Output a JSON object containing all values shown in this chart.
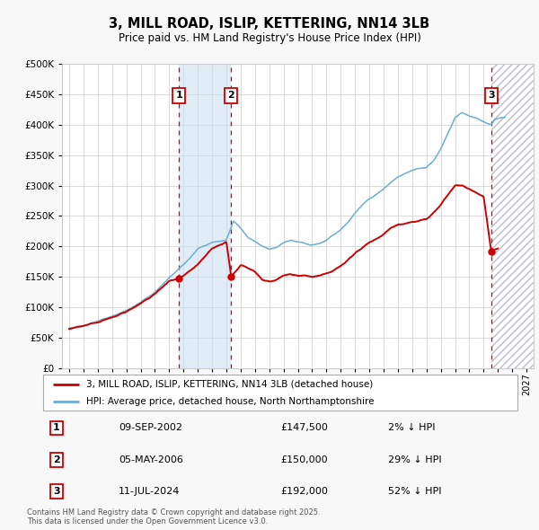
{
  "title": "3, MILL ROAD, ISLIP, KETTERING, NN14 3LB",
  "subtitle": "Price paid vs. HM Land Registry's House Price Index (HPI)",
  "legend_line1": "3, MILL ROAD, ISLIP, KETTERING, NN14 3LB (detached house)",
  "legend_line2": "HPI: Average price, detached house, North Northamptonshire",
  "footer": "Contains HM Land Registry data © Crown copyright and database right 2025.\nThis data is licensed under the Open Government Licence v3.0.",
  "transactions": [
    {
      "label": "1",
      "date": "09-SEP-2002",
      "price": 147500,
      "pct": "2% ↓ HPI",
      "x_year": 2002.69
    },
    {
      "label": "2",
      "date": "05-MAY-2006",
      "price": 150000,
      "pct": "29% ↓ HPI",
      "x_year": 2006.34
    },
    {
      "label": "3",
      "date": "11-JUL-2024",
      "price": 192000,
      "pct": "52% ↓ HPI",
      "x_year": 2024.53
    }
  ],
  "hpi_color": "#6baed6",
  "price_color": "#cc0000",
  "background_color": "#f8f8f8",
  "plot_bg_color": "#ffffff",
  "grid_color": "#cccccc",
  "shaded_region": [
    2002.69,
    2006.34
  ],
  "hatch_region_start": 2024.53,
  "ylim": [
    0,
    500000
  ],
  "xlim": [
    1994.5,
    2027.5
  ],
  "yticks": [
    0,
    50000,
    100000,
    150000,
    200000,
    250000,
    300000,
    350000,
    400000,
    450000,
    500000
  ],
  "xticks": [
    1995,
    1996,
    1997,
    1998,
    1999,
    2000,
    2001,
    2002,
    2003,
    2004,
    2005,
    2006,
    2007,
    2008,
    2009,
    2010,
    2011,
    2012,
    2013,
    2014,
    2015,
    2016,
    2017,
    2018,
    2019,
    2020,
    2021,
    2022,
    2023,
    2024,
    2025,
    2026,
    2027
  ],
  "hpi_anchors": [
    [
      1995.0,
      65000
    ],
    [
      1996.0,
      70000
    ],
    [
      1997.0,
      78000
    ],
    [
      1998.0,
      85000
    ],
    [
      1999.0,
      95000
    ],
    [
      2000.0,
      108000
    ],
    [
      2001.0,
      125000
    ],
    [
      2002.0,
      148000
    ],
    [
      2003.0,
      170000
    ],
    [
      2004.0,
      195000
    ],
    [
      2005.0,
      207000
    ],
    [
      2006.0,
      210000
    ],
    [
      2006.5,
      243000
    ],
    [
      2007.0,
      230000
    ],
    [
      2007.5,
      215000
    ],
    [
      2008.0,
      208000
    ],
    [
      2008.5,
      200000
    ],
    [
      2009.0,
      195000
    ],
    [
      2009.5,
      198000
    ],
    [
      2010.0,
      207000
    ],
    [
      2010.5,
      210000
    ],
    [
      2011.0,
      207000
    ],
    [
      2011.5,
      205000
    ],
    [
      2012.0,
      202000
    ],
    [
      2012.5,
      205000
    ],
    [
      2013.0,
      210000
    ],
    [
      2013.5,
      218000
    ],
    [
      2014.0,
      228000
    ],
    [
      2014.5,
      240000
    ],
    [
      2015.0,
      255000
    ],
    [
      2015.5,
      268000
    ],
    [
      2016.0,
      278000
    ],
    [
      2016.5,
      285000
    ],
    [
      2017.0,
      295000
    ],
    [
      2017.5,
      305000
    ],
    [
      2018.0,
      315000
    ],
    [
      2018.5,
      320000
    ],
    [
      2019.0,
      325000
    ],
    [
      2019.5,
      328000
    ],
    [
      2020.0,
      330000
    ],
    [
      2020.5,
      340000
    ],
    [
      2021.0,
      360000
    ],
    [
      2021.5,
      385000
    ],
    [
      2022.0,
      410000
    ],
    [
      2022.5,
      420000
    ],
    [
      2023.0,
      415000
    ],
    [
      2023.5,
      410000
    ],
    [
      2024.0,
      405000
    ],
    [
      2024.53,
      400000
    ],
    [
      2024.8,
      408000
    ],
    [
      2025.0,
      410000
    ],
    [
      2025.5,
      412000
    ]
  ],
  "price_anchors": [
    [
      1995.0,
      65000
    ],
    [
      1996.0,
      70000
    ],
    [
      1997.0,
      76000
    ],
    [
      1998.0,
      83000
    ],
    [
      1999.0,
      93000
    ],
    [
      2000.0,
      106000
    ],
    [
      2001.0,
      122000
    ],
    [
      2002.0,
      143000
    ],
    [
      2002.69,
      147500
    ],
    [
      2003.0,
      151000
    ],
    [
      2004.0,
      170000
    ],
    [
      2005.0,
      197000
    ],
    [
      2006.0,
      207000
    ],
    [
      2006.34,
      150000
    ],
    [
      2007.0,
      170000
    ],
    [
      2007.5,
      165000
    ],
    [
      2008.0,
      158000
    ],
    [
      2008.5,
      145000
    ],
    [
      2009.0,
      142000
    ],
    [
      2009.5,
      145000
    ],
    [
      2010.0,
      152000
    ],
    [
      2010.5,
      155000
    ],
    [
      2011.0,
      152000
    ],
    [
      2011.5,
      152000
    ],
    [
      2012.0,
      150000
    ],
    [
      2012.5,
      152000
    ],
    [
      2013.0,
      155000
    ],
    [
      2013.5,
      160000
    ],
    [
      2014.0,
      168000
    ],
    [
      2014.5,
      178000
    ],
    [
      2015.0,
      188000
    ],
    [
      2015.5,
      198000
    ],
    [
      2016.0,
      207000
    ],
    [
      2016.5,
      212000
    ],
    [
      2017.0,
      220000
    ],
    [
      2017.5,
      230000
    ],
    [
      2018.0,
      235000
    ],
    [
      2018.5,
      238000
    ],
    [
      2019.0,
      240000
    ],
    [
      2019.5,
      242000
    ],
    [
      2020.0,
      245000
    ],
    [
      2020.5,
      255000
    ],
    [
      2021.0,
      268000
    ],
    [
      2021.5,
      285000
    ],
    [
      2022.0,
      300000
    ],
    [
      2022.5,
      300000
    ],
    [
      2023.0,
      295000
    ],
    [
      2023.5,
      288000
    ],
    [
      2024.0,
      282000
    ],
    [
      2024.53,
      192000
    ],
    [
      2024.8,
      195000
    ],
    [
      2025.0,
      197000
    ]
  ]
}
